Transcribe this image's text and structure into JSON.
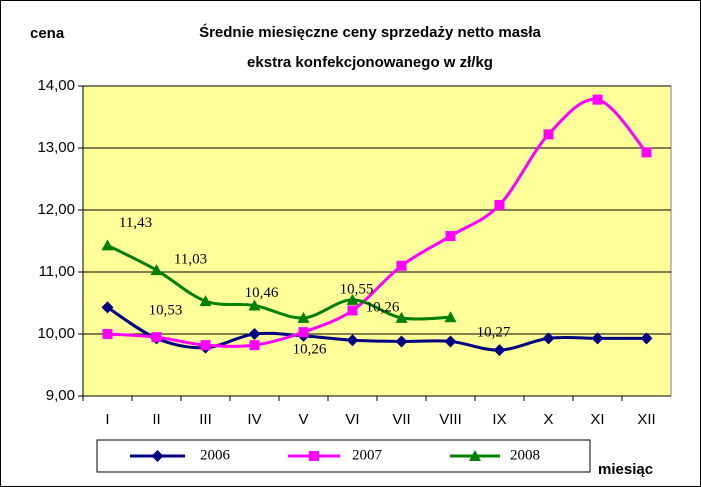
{
  "chart_data": {
    "type": "line",
    "title": [
      "Średnie miesięczne ceny sprzedaży netto masła",
      "ekstra konfekcjonowanego w zł/kg"
    ],
    "y_label": "cena",
    "x_label": "miesiąc",
    "categories": [
      "I",
      "II",
      "III",
      "IV",
      "V",
      "VI",
      "VII",
      "VIII",
      "IX",
      "X",
      "XI",
      "XII"
    ],
    "series": [
      {
        "name": "2006",
        "color": "#000080",
        "marker": "diamond",
        "values": [
          10.43,
          9.93,
          9.78,
          10.0,
          9.97,
          9.9,
          9.88,
          9.88,
          9.74,
          9.93,
          9.93,
          9.93
        ]
      },
      {
        "name": "2007",
        "color": "#ff00ff",
        "marker": "square",
        "values": [
          10.0,
          9.95,
          9.82,
          9.82,
          10.03,
          10.38,
          11.1,
          11.58,
          12.08,
          13.22,
          13.78,
          12.93
        ]
      },
      {
        "name": "2008",
        "color": "#008000",
        "marker": "triangle",
        "values": [
          11.43,
          11.03,
          10.53,
          10.46,
          10.26,
          10.55,
          10.26,
          10.27,
          null,
          null,
          null,
          null
        ],
        "value_labels": [
          "11,43",
          "11,03",
          "10,53",
          "10,46",
          "10,26",
          "10,55",
          "10,26",
          "10,27",
          null,
          null,
          null,
          null
        ]
      }
    ],
    "ylim": [
      9,
      14
    ],
    "yticks": [
      {
        "value": 9,
        "label": "9,00"
      },
      {
        "value": 10,
        "label": "10,00"
      },
      {
        "value": 11,
        "label": "11,00"
      },
      {
        "value": 12,
        "label": "12,00"
      },
      {
        "value": 13,
        "label": "13,00"
      },
      {
        "value": 14,
        "label": "14,00"
      }
    ],
    "grid": true,
    "legend": "bottom",
    "background": "#ffff99"
  }
}
